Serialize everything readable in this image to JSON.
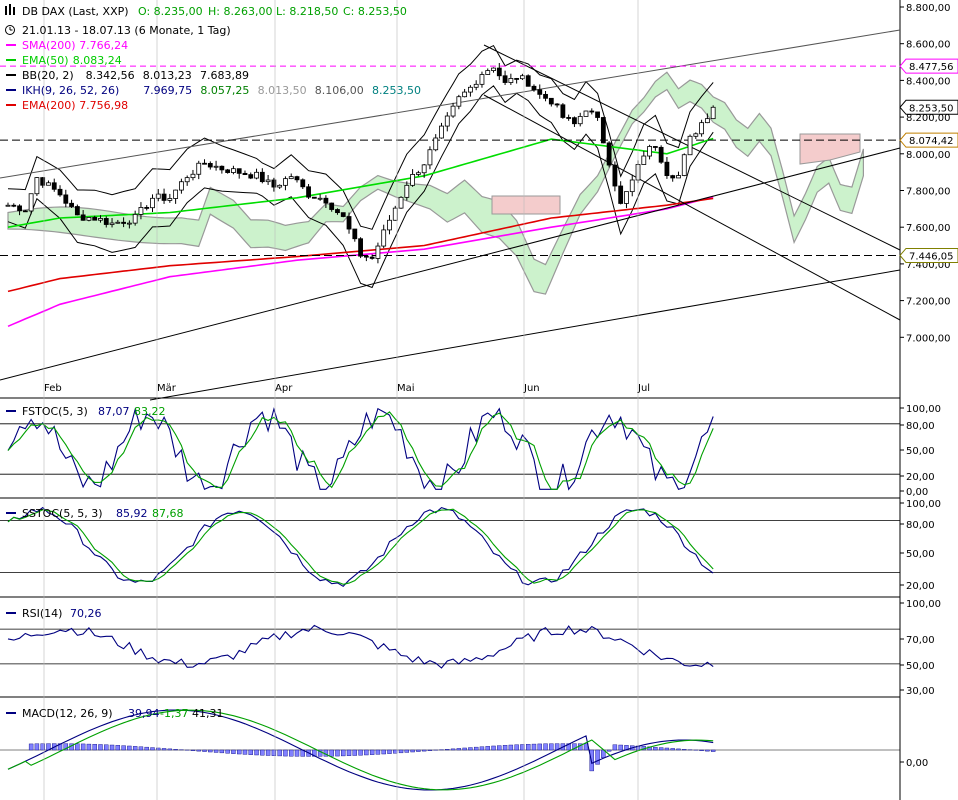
{
  "header": {
    "title": "DB DAX (Last, XXP)",
    "ohlc": {
      "o": "O: 8.235,00",
      "h": "H: 8.263,00",
      "l": "L: 8.218,50",
      "c": "C: 8.253,50"
    },
    "range": "21.01.13 - 18.07.13 (6 Monate, 1 Tag)"
  },
  "legend": [
    {
      "id": "sma200",
      "label": "SMA(200)",
      "values": [
        "7.766,24"
      ],
      "color": "#ff00ff"
    },
    {
      "id": "ema50",
      "label": "EMA(50)",
      "values": [
        "8.083,24"
      ],
      "color": "#00cc00"
    },
    {
      "id": "bb",
      "label": "BB(20, 2)",
      "values": [
        "8.342,56",
        "8.013,23",
        "7.683,89"
      ],
      "color": "#000000"
    },
    {
      "id": "ikh",
      "label": "IKH(9, 26, 52, 26)",
      "values": [
        "7.969,75",
        "8.057,25",
        "8.013,50",
        "8.106,00",
        "8.253,50"
      ],
      "colors": [
        "#000080",
        "#008000",
        "#999999",
        "#555555",
        "#008080"
      ],
      "color": "#000080"
    },
    {
      "id": "ema200",
      "label": "EMA(200)",
      "values": [
        "7.756,98"
      ],
      "color": "#e00000"
    }
  ],
  "months": [
    "Feb",
    "Mär",
    "Apr",
    "Mai",
    "Jun",
    "Jul"
  ],
  "price_axis": [
    "8.800,00",
    "8.600,00",
    "8.400,00",
    "8.200,00",
    "8.000,00",
    "7.800,00",
    "7.600,00",
    "7.400,00",
    "7.200,00",
    "7.000,00"
  ],
  "price_tags": [
    {
      "value": "8.477,56",
      "price": 8477.56,
      "color": "#ff00ff"
    },
    {
      "value": "8.253,50",
      "price": 8253.5,
      "color": "#000000"
    },
    {
      "value": "8.074,42",
      "price": 8074.42,
      "color": "#c08000"
    },
    {
      "value": "7.446,05",
      "price": 7446.05,
      "color": "#808000"
    }
  ],
  "fstoc": {
    "label": "FSTOC(5, 3)",
    "v1": "87,07",
    "v2": "83,22",
    "axis": [
      "100,00",
      "80,00",
      "50,00",
      "20,00",
      "0,00"
    ]
  },
  "sstoc": {
    "label": "SSTOC(5, 5, 3)",
    "v1": "85,92",
    "v2": "87,68",
    "axis": [
      "100,00",
      "80,00",
      "50,00",
      "20,00"
    ]
  },
  "rsi": {
    "label": "RSI(14)",
    "v1": "70,26",
    "axis": [
      "100,00",
      "70,00",
      "50,00",
      "30,00"
    ]
  },
  "macd": {
    "label": "MACD(12, 26, 9)",
    "v1": "39,94",
    "v2": "-1,37",
    "v3": "41,31",
    "axis": [
      "0,00"
    ]
  },
  "chart_data": {
    "type": "line",
    "title": "DB DAX (Last, XXP)",
    "x": [
      "2013-01-21",
      "2013-02-01",
      "2013-03-01",
      "2013-04-02",
      "2013-05-02",
      "2013-06-03",
      "2013-07-01",
      "2013-07-18"
    ],
    "series": [
      {
        "name": "DB DAX",
        "values": [
          7700,
          7780,
          7780,
          7850,
          7950,
          8300,
          8050,
          8253.5
        ]
      },
      {
        "name": "SMA(200)",
        "values": [
          7060,
          7180,
          7330,
          7420,
          7480,
          7600,
          7700,
          7766.24
        ]
      },
      {
        "name": "EMA(50)",
        "values": [
          7600,
          7650,
          7680,
          7760,
          7880,
          8080,
          8000,
          8083.24
        ]
      },
      {
        "name": "EMA(200)",
        "values": [
          7250,
          7320,
          7390,
          7440,
          7500,
          7650,
          7720,
          7756.98
        ]
      }
    ],
    "ylim": [
      6900,
      8850
    ]
  }
}
